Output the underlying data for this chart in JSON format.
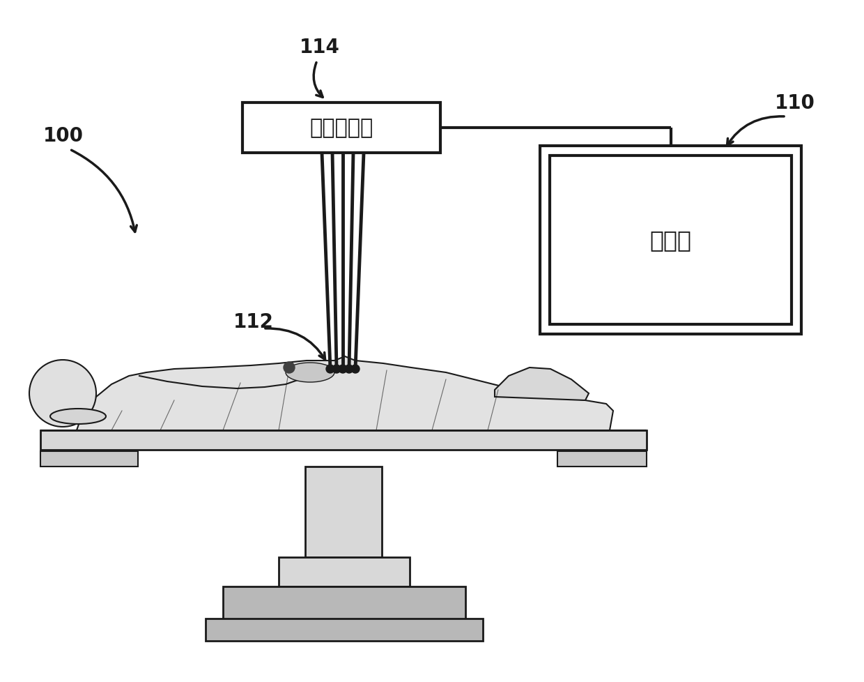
{
  "bg_color": "#ffffff",
  "line_color": "#000000",
  "label_100": "100",
  "label_110": "110",
  "label_112": "112",
  "label_114": "114",
  "text_tracker": "位置跟踪器",
  "text_computer": "计算机",
  "fig_w": 12.4,
  "fig_h": 9.79,
  "dpi": 100
}
